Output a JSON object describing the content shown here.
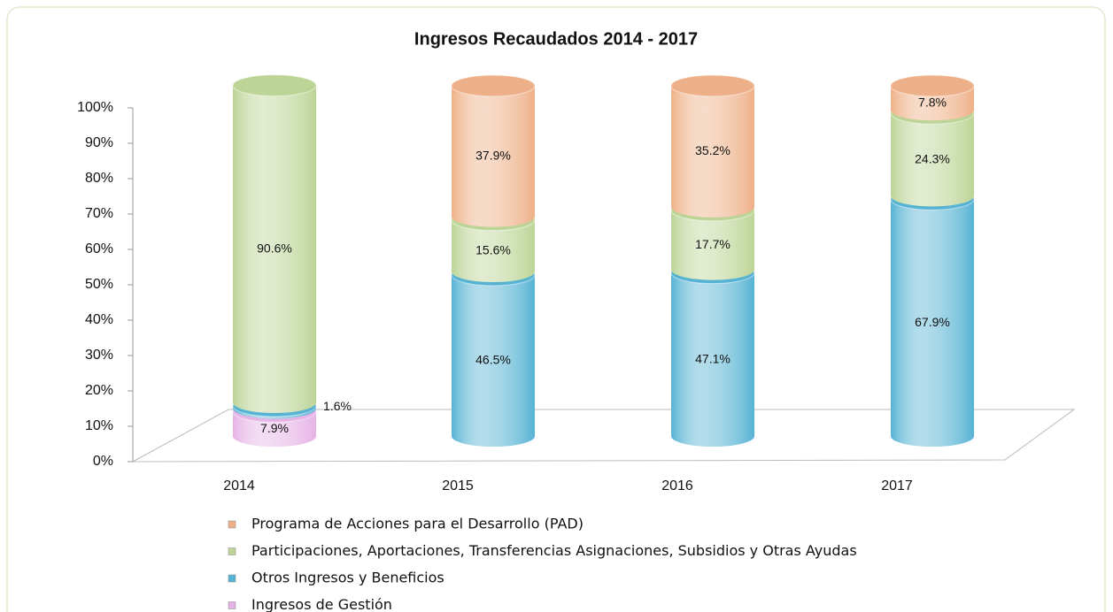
{
  "chart_data": {
    "type": "bar",
    "stacked": true,
    "title": "Ingresos Recaudados 2014 - 2017",
    "categories": [
      "2014",
      "2015",
      "2016",
      "2017"
    ],
    "series": [
      {
        "name": "Ingresos de Gestión",
        "color": "#e6b3e6",
        "values": [
          7.9,
          null,
          null,
          null
        ],
        "value_labels": [
          "7.9%",
          null,
          null,
          null
        ]
      },
      {
        "name": "Otros Ingresos y Beneficios",
        "color": "#56b3d3",
        "values": [
          1.6,
          46.5,
          47.1,
          67.9
        ],
        "value_labels": [
          "1.6%",
          "46.5%",
          "47.1%",
          "67.9%"
        ]
      },
      {
        "name": "Participaciones, Aportaciones, Transferencias Asignaciones, Subsidios y Otras Ayudas",
        "color": "#bcd496",
        "values": [
          90.6,
          15.6,
          17.7,
          24.3
        ],
        "value_labels": [
          "90.6%",
          "15.6%",
          "17.7%",
          "24.3%"
        ]
      },
      {
        "name": "Programa de Acciones para el Desarrollo (PAD)",
        "color": "#eeb088",
        "values": [
          null,
          37.9,
          35.2,
          7.8
        ],
        "value_labels": [
          null,
          "37.9%",
          "35.2%",
          "7.8%"
        ]
      }
    ],
    "ylim": [
      0,
      100
    ],
    "yticks": [
      {
        "value": 0,
        "label": "0%"
      },
      {
        "value": 10,
        "label": "10%"
      },
      {
        "value": 20,
        "label": "20%"
      },
      {
        "value": 30,
        "label": "30%"
      },
      {
        "value": 40,
        "label": "40%"
      },
      {
        "value": 50,
        "label": "50%"
      },
      {
        "value": 60,
        "label": "60%"
      },
      {
        "value": 70,
        "label": "70%"
      },
      {
        "value": 80,
        "label": "80%"
      },
      {
        "value": 90,
        "label": "90%"
      },
      {
        "value": 100,
        "label": "100%"
      }
    ],
    "grid": false,
    "legend": "bottom"
  }
}
